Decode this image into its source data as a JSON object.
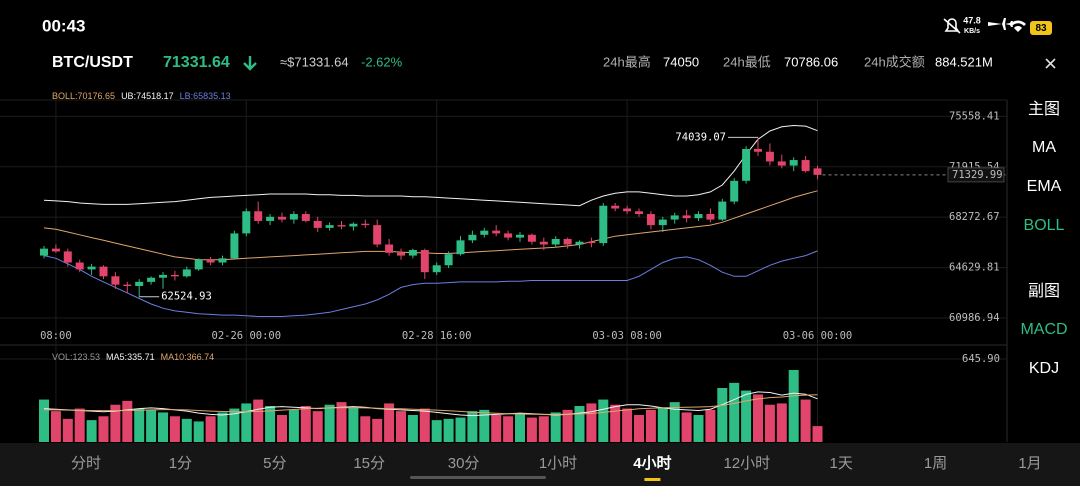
{
  "status": {
    "time": "00:43",
    "speed": "47.8",
    "speed_unit": "KB/s",
    "battery": "83"
  },
  "header": {
    "pair": "BTC/USDT",
    "price": 71331.64,
    "fiat": "≈$71331.64",
    "change": "-2.62%",
    "high_label": "24h最高",
    "high": 74050,
    "low_label": "24h最低",
    "low": 70786.06,
    "amount_label": "24h成交额",
    "amount": "884.521M"
  },
  "sidebar": {
    "main_title": "主图",
    "main": [
      "MA",
      "EMA",
      "BOLL"
    ],
    "sub_title": "副图",
    "sub": [
      "MACD",
      "KDJ"
    ]
  },
  "tabs": [
    "分时",
    "1分",
    "5分",
    "15分",
    "30分",
    "1小时",
    "4小时",
    "12小时",
    "1天",
    "1周",
    "1月"
  ],
  "chart_data": [
    {
      "type": "candlestick",
      "up_color": "#2ebd85",
      "down_color": "#e2456b",
      "categories": [
        null,
        "08:00",
        null,
        null,
        null,
        null,
        null,
        null,
        null,
        null,
        null,
        null,
        null,
        null,
        null,
        null,
        null,
        "02-26 00:00",
        null,
        null,
        null,
        null,
        null,
        null,
        null,
        null,
        null,
        null,
        null,
        null,
        null,
        null,
        null,
        "02-28 16:00",
        null,
        null,
        null,
        null,
        null,
        null,
        null,
        null,
        null,
        null,
        null,
        null,
        null,
        null,
        null,
        "03-03 08:00",
        null,
        null,
        null,
        null,
        null,
        null,
        null,
        null,
        null,
        null,
        null,
        null,
        null,
        null,
        null,
        "03-06 00:00"
      ],
      "open": [
        65500,
        66000,
        65800,
        65000,
        64500,
        64700,
        64000,
        63400,
        63300,
        63600,
        63900,
        64100,
        64000,
        64500,
        65200,
        65000,
        65300,
        67100,
        68700,
        68000,
        68300,
        68100,
        68500,
        68000,
        67500,
        67700,
        67600,
        67800,
        67700,
        66300,
        65700,
        65500,
        65900,
        64300,
        64800,
        65600,
        66600,
        67000,
        67300,
        67100,
        66800,
        67000,
        66500,
        66300,
        66700,
        66300,
        66500,
        66400,
        69100,
        68900,
        68700,
        68500,
        67700,
        68100,
        68400,
        68200,
        68500,
        68100,
        69400,
        70900,
        73200,
        73000,
        72300,
        72000,
        72400,
        71800
      ],
      "high": [
        66200,
        66300,
        66000,
        65200,
        64900,
        64800,
        64300,
        63600,
        63800,
        64000,
        64300,
        64400,
        64700,
        65300,
        65400,
        65500,
        67300,
        68900,
        69400,
        68500,
        68600,
        68700,
        68700,
        68300,
        67900,
        68000,
        67900,
        68100,
        68100,
        66700,
        66000,
        66000,
        66000,
        65000,
        65800,
        66900,
        67300,
        67500,
        67700,
        67300,
        67200,
        67100,
        66800,
        66900,
        66800,
        66600,
        66800,
        69300,
        69300,
        69100,
        68900,
        68700,
        68300,
        68600,
        68800,
        68700,
        68900,
        69600,
        71100,
        73400,
        74039.07,
        73600,
        72800,
        72600,
        72700,
        72000
      ],
      "low": [
        65300,
        65700,
        64700,
        64300,
        64100,
        63800,
        63100,
        62800,
        62524.93,
        63400,
        63100,
        63700,
        63900,
        64400,
        64800,
        64800,
        65200,
        66900,
        67800,
        67700,
        67900,
        67800,
        67900,
        67200,
        67300,
        67400,
        67300,
        67500,
        66100,
        65500,
        65200,
        65300,
        63800,
        64100,
        64600,
        65500,
        66400,
        66800,
        66900,
        66600,
        66500,
        66300,
        65900,
        66100,
        66000,
        66000,
        66100,
        66200,
        68700,
        68500,
        68300,
        67400,
        67200,
        67800,
        67900,
        68000,
        67900,
        68000,
        69200,
        70700,
        72700,
        72000,
        71800,
        71600,
        71500,
        71000
      ],
      "close": [
        66000,
        65800,
        65000,
        64500,
        64700,
        64000,
        63400,
        63300,
        63600,
        63900,
        64100,
        64000,
        64500,
        65200,
        65000,
        65300,
        67100,
        68700,
        68000,
        68300,
        68100,
        68500,
        68000,
        67500,
        67700,
        67600,
        67800,
        67700,
        66300,
        65700,
        65500,
        65900,
        64300,
        64800,
        65600,
        66600,
        67000,
        67300,
        67100,
        66800,
        67000,
        66500,
        66300,
        66700,
        66300,
        66500,
        66400,
        69100,
        68900,
        68700,
        68500,
        67700,
        68100,
        68400,
        68200,
        68500,
        68100,
        69400,
        70900,
        73200,
        73000,
        72300,
        72000,
        72400,
        71600,
        71329.99
      ],
      "bands": [
        {
          "name": "BOLL:",
          "color": "#e0a66a",
          "values": [
            67500,
            67400,
            67200,
            67000,
            66800,
            66600,
            66400,
            66200,
            66000,
            65800,
            65600,
            65400,
            65300,
            65200,
            65200,
            65200,
            65250,
            65300,
            65350,
            65400,
            65450,
            65500,
            65550,
            65600,
            65650,
            65700,
            65750,
            65800,
            65800,
            65800,
            65750,
            65700,
            65700,
            65650,
            65650,
            65700,
            65750,
            65800,
            65850,
            65900,
            65950,
            66000,
            66050,
            66100,
            66200,
            66300,
            66500,
            66700,
            66900,
            67000,
            67100,
            67200,
            67300,
            67400,
            67500,
            67600,
            67700,
            67900,
            68200,
            68500,
            68800,
            69100,
            69400,
            69700,
            69950,
            70176.65
          ]
        },
        {
          "name": "UB:",
          "color": "#f2f2f2",
          "values": [
            69500,
            69450,
            69400,
            69300,
            69250,
            69200,
            69200,
            69200,
            69250,
            69300,
            69350,
            69400,
            69500,
            69600,
            69700,
            69750,
            69800,
            69850,
            69900,
            69950,
            69950,
            69950,
            69950,
            69900,
            69900,
            69850,
            69850,
            69800,
            69800,
            69800,
            69800,
            69750,
            69750,
            69700,
            69650,
            69600,
            69550,
            69500,
            69450,
            69400,
            69350,
            69300,
            69250,
            69200,
            69150,
            69100,
            69500,
            69800,
            70000,
            70100,
            70100,
            70000,
            69900,
            69800,
            69800,
            69900,
            70100,
            70600,
            71600,
            72800,
            73900,
            74500,
            74800,
            74900,
            74850,
            74518.17
          ]
        },
        {
          "name": "LB:",
          "color": "#6b7fe0",
          "values": [
            65500,
            65300,
            64900,
            64500,
            64000,
            63600,
            63200,
            62800,
            62400,
            62000,
            61700,
            61500,
            61400,
            61300,
            61250,
            61200,
            61200,
            61150,
            61100,
            61100,
            61100,
            61150,
            61200,
            61300,
            61400,
            61600,
            61800,
            62000,
            62300,
            62700,
            63200,
            63400,
            63500,
            63500,
            63550,
            63600,
            63600,
            63600,
            63600,
            63650,
            63650,
            63700,
            63700,
            63700,
            63700,
            63700,
            63700,
            63700,
            63700,
            63700,
            64000,
            64500,
            65000,
            65300,
            65400,
            65200,
            64800,
            64300,
            64000,
            64000,
            64400,
            64800,
            65100,
            65300,
            65500,
            65835.13
          ]
        }
      ],
      "ylim": [
        59400,
        77100
      ],
      "yticks": [
        75558.41,
        71915.54,
        68272.67,
        64629.81,
        60986.94
      ],
      "grid": true
    },
    {
      "type": "bar",
      "name": "VOL:",
      "color": "#9a9a9a",
      "values": [
        330,
        240,
        180,
        260,
        170,
        200,
        290,
        320,
        260,
        250,
        230,
        200,
        180,
        160,
        200,
        230,
        260,
        300,
        330,
        280,
        210,
        250,
        280,
        240,
        290,
        310,
        270,
        200,
        180,
        300,
        240,
        210,
        260,
        170,
        180,
        190,
        240,
        250,
        210,
        200,
        220,
        190,
        200,
        230,
        250,
        280,
        300,
        330,
        290,
        260,
        210,
        250,
        270,
        310,
        230,
        210,
        250,
        420,
        460,
        400,
        370,
        290,
        300,
        560,
        330,
        123.53
      ],
      "lines": [
        {
          "name": "MA5:",
          "color": "#f2f2f2",
          "values": [
            260,
            255,
            250,
            245,
            240,
            235,
            240,
            250,
            260,
            265,
            260,
            250,
            240,
            225,
            215,
            210,
            220,
            235,
            255,
            270,
            275,
            270,
            265,
            260,
            265,
            270,
            275,
            270,
            260,
            255,
            250,
            245,
            240,
            230,
            220,
            210,
            205,
            210,
            215,
            220,
            225,
            220,
            215,
            210,
            215,
            225,
            235,
            255,
            275,
            290,
            290,
            280,
            265,
            255,
            250,
            245,
            255,
            290,
            330,
            370,
            390,
            385,
            365,
            380,
            372,
            335.71
          ]
        },
        {
          "name": "MA10:",
          "color": "#e0a66a",
          "values": [
            250,
            250,
            248,
            246,
            245,
            244,
            244,
            245,
            247,
            250,
            252,
            252,
            250,
            245,
            240,
            237,
            235,
            235,
            238,
            242,
            248,
            253,
            258,
            262,
            265,
            266,
            266,
            265,
            263,
            260,
            258,
            255,
            252,
            248,
            243,
            238,
            232,
            228,
            224,
            220,
            218,
            216,
            215,
            215,
            216,
            218,
            222,
            230,
            240,
            250,
            258,
            262,
            265,
            268,
            270,
            272,
            275,
            285,
            300,
            320,
            335,
            345,
            350,
            360,
            365,
            366.74
          ]
        }
      ],
      "ylim": [
        0,
        700
      ],
      "yticks": [
        {
          "value": 645.9,
          "label": "645.90"
        }
      ]
    }
  ]
}
